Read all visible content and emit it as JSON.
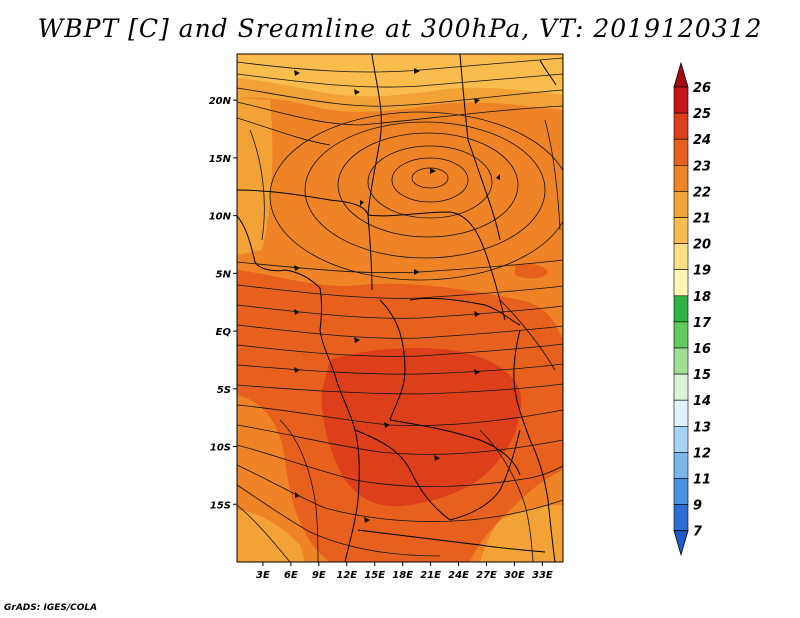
{
  "title": "WBPT [C] and Sreamline at 300hPa, VT: 2019120312",
  "credit": "GrADS: IGES/COLA",
  "map": {
    "lon_range": [
      0,
      35
    ],
    "lat_range": [
      -20,
      24
    ],
    "x_ticks": [
      "3E",
      "6E",
      "9E",
      "12E",
      "15E",
      "18E",
      "21E",
      "24E",
      "27E",
      "30E",
      "33E"
    ],
    "y_ticks": [
      "20N",
      "15N",
      "10N",
      "5N",
      "EQ",
      "5S",
      "10S",
      "15S"
    ],
    "fill_colors": {
      "c20_21": "#f9bd4d",
      "c21_22": "#f3a235",
      "c22_23": "#ee8426",
      "c23_24": "#e8601e",
      "c24_25": "#dc3f1a"
    }
  },
  "colorbar": {
    "labels": [
      "26",
      "25",
      "24",
      "23",
      "22",
      "21",
      "20",
      "19",
      "18",
      "17",
      "16",
      "15",
      "14",
      "13",
      "12",
      "11",
      "9",
      "7"
    ],
    "colors": [
      "#a50c12",
      "#c61417",
      "#dc3f1a",
      "#e8601e",
      "#ee8426",
      "#f3a235",
      "#f9bd4d",
      "#fbdf85",
      "#fff6b4",
      "#2fb342",
      "#62cb5d",
      "#9fe095",
      "#dbf3d6",
      "#dff2f8",
      "#a8d2f1",
      "#7ab6ec",
      "#4a92e2",
      "#2a6ed6",
      "#1f5ac8"
    ]
  }
}
